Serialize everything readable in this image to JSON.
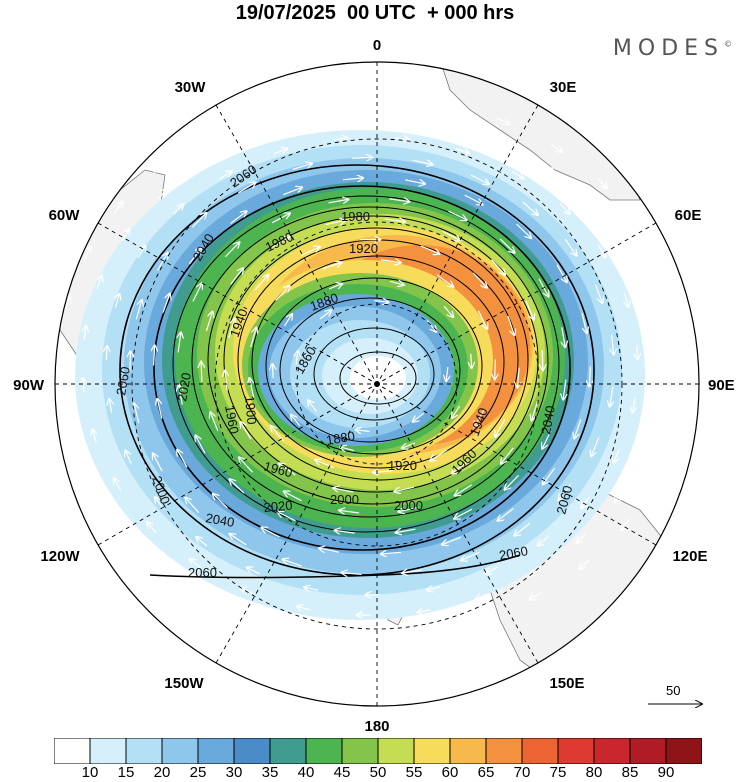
{
  "header": {
    "title": "19/07/2025  00 UTC  + 000 hrs",
    "brand": "MODES",
    "brand_mark": "©"
  },
  "map": {
    "projection": "south-polar-stereographic",
    "longitude_labels": {
      "top": "0",
      "top_right": "30E",
      "upper_right": "60E",
      "right": "90E",
      "lower_right": "120E",
      "bottom_right": "150E",
      "bottom": "180",
      "bottom_left": "150W",
      "lower_left": "120W",
      "left": "90W",
      "upper_left": "60W",
      "top_left": "30W"
    },
    "contour_labels": [
      "2060",
      "2040",
      "1980",
      "1980",
      "1920",
      "1880",
      "1860",
      "1940",
      "2020",
      "1960",
      "1900",
      "2000",
      "2000",
      "1920",
      "1960",
      "1940",
      "1880",
      "2040",
      "2020",
      "2060",
      "2040",
      "2000",
      "1960",
      "2060",
      "2060"
    ],
    "contour_values": [
      1860,
      1880,
      1900,
      1920,
      1940,
      1960,
      1980,
      2000,
      2020,
      2040,
      2060
    ],
    "shading_field": "wind speed",
    "vector_field": "wind direction",
    "reference_vector_label": "50",
    "land_color": "#f2f2f2",
    "vector_color": "#ffffff"
  },
  "colorbar": {
    "ticks": [
      "10",
      "15",
      "20",
      "25",
      "30",
      "35",
      "40",
      "45",
      "50",
      "55",
      "60",
      "65",
      "70",
      "75",
      "80",
      "85",
      "90"
    ],
    "colors": [
      "#ffffff",
      "#d6f0fb",
      "#b4e0f6",
      "#8fc7ec",
      "#6aa9dc",
      "#4a8bc8",
      "#3f9c8e",
      "#4cb550",
      "#82c54a",
      "#c4dd52",
      "#f6dc5a",
      "#f7b94c",
      "#f3913e",
      "#ec6434",
      "#df3a31",
      "#c9262d",
      "#b01c26",
      "#8f1418"
    ]
  }
}
